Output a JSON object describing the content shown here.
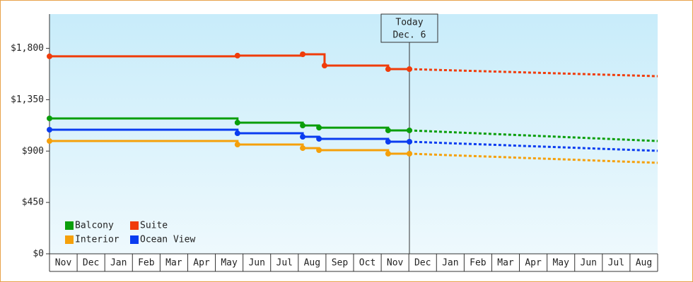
{
  "chart_data": {
    "type": "step",
    "categories": [
      "Nov",
      "Dec",
      "Jan",
      "Feb",
      "Mar",
      "Apr",
      "May",
      "Jun",
      "Jul",
      "Aug",
      "Sep",
      "Oct",
      "Nov",
      "Dec",
      "Jan",
      "Feb",
      "Mar",
      "Apr",
      "May",
      "Jun",
      "Jul",
      "Aug"
    ],
    "xlim": [
      0,
      22
    ],
    "ylim": [
      0,
      2100
    ],
    "yticks": [
      {
        "value": 0,
        "label": "$0"
      },
      {
        "value": 450,
        "label": "$450"
      },
      {
        "value": 900,
        "label": "$900"
      },
      {
        "value": 1350,
        "label": "$1,350"
      },
      {
        "value": 1800,
        "label": "$1,800"
      }
    ],
    "legend": "bottom-left",
    "today": {
      "x": 13.02,
      "label": [
        "Today",
        "Dec. 6"
      ]
    },
    "series": [
      {
        "name": "Balcony",
        "color": "#0a9e0a",
        "x": [
          0,
          6.8,
          9.16,
          9.75,
          12.25,
          13.02
        ],
        "values": [
          1186,
          1149,
          1124,
          1105,
          1081,
          1081
        ],
        "forecast_x": [
          13.02,
          22
        ],
        "forecast_values": [
          1081,
          988
        ]
      },
      {
        "name": "Suite",
        "color": "#f03c0a",
        "x": [
          0,
          6.8,
          9.16,
          9.95,
          12.25,
          13.02
        ],
        "values": [
          1730,
          1736,
          1748,
          1649,
          1618,
          1618
        ],
        "forecast_x": [
          13.02,
          22
        ],
        "forecast_values": [
          1618,
          1556
        ]
      },
      {
        "name": "Interior",
        "color": "#f5a00a",
        "x": [
          0,
          6.8,
          9.16,
          9.75,
          12.25,
          13.02
        ],
        "values": [
          988,
          957,
          926,
          908,
          877,
          877
        ],
        "forecast_x": [
          13.02,
          22
        ],
        "forecast_values": [
          877,
          797
        ]
      },
      {
        "name": "Ocean View",
        "color": "#0a3cf0",
        "x": [
          0,
          6.8,
          9.16,
          9.75,
          12.25,
          13.02
        ],
        "values": [
          1087,
          1056,
          1025,
          1007,
          982,
          982
        ],
        "forecast_x": [
          13.02,
          22
        ],
        "forecast_values": [
          982,
          902
        ]
      }
    ]
  }
}
